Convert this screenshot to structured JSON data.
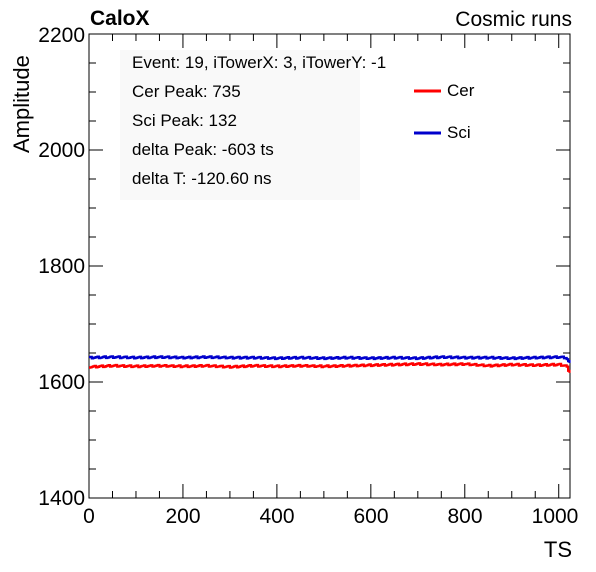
{
  "header": {
    "experiment": "CaloX",
    "run_type": "Cosmic runs"
  },
  "info_box": {
    "lines": [
      "Event: 19, iTowerX: 3, iTowerY: -1",
      "Cer Peak: 735",
      "Sci Peak: 132",
      "delta Peak: -603 ts",
      "delta T: -120.60 ns"
    ]
  },
  "colors": {
    "cer": "#ff0000",
    "sci": "#0000cc",
    "axis": "#000000"
  },
  "chart_data": {
    "type": "line",
    "title": "",
    "xlabel": "TS",
    "ylabel": "Amplitude",
    "xlim": [
      0,
      1024
    ],
    "ylim": [
      1400,
      2200
    ],
    "x_ticks": [
      "0",
      "200",
      "400",
      "600",
      "800",
      "1000"
    ],
    "y_ticks": [
      "1400",
      "1600",
      "1800",
      "2000",
      "2200"
    ],
    "grid": false,
    "legend_position": "top-right",
    "x": [
      0,
      50,
      100,
      150,
      200,
      250,
      300,
      350,
      400,
      450,
      500,
      550,
      600,
      650,
      700,
      750,
      800,
      850,
      900,
      950,
      1000,
      1015,
      1024
    ],
    "series": [
      {
        "name": "Cer",
        "color": "#ff0000",
        "values": [
          1626,
          1628,
          1627,
          1628,
          1627,
          1628,
          1626,
          1628,
          1627,
          1628,
          1627,
          1628,
          1629,
          1630,
          1631,
          1630,
          1631,
          1628,
          1630,
          1629,
          1630,
          1628,
          1615
        ]
      },
      {
        "name": "Sci",
        "color": "#0000cc",
        "values": [
          1642,
          1643,
          1642,
          1643,
          1642,
          1643,
          1642,
          1642,
          1641,
          1642,
          1641,
          1642,
          1641,
          1642,
          1641,
          1643,
          1642,
          1642,
          1641,
          1642,
          1643,
          1642,
          1630
        ]
      }
    ]
  }
}
